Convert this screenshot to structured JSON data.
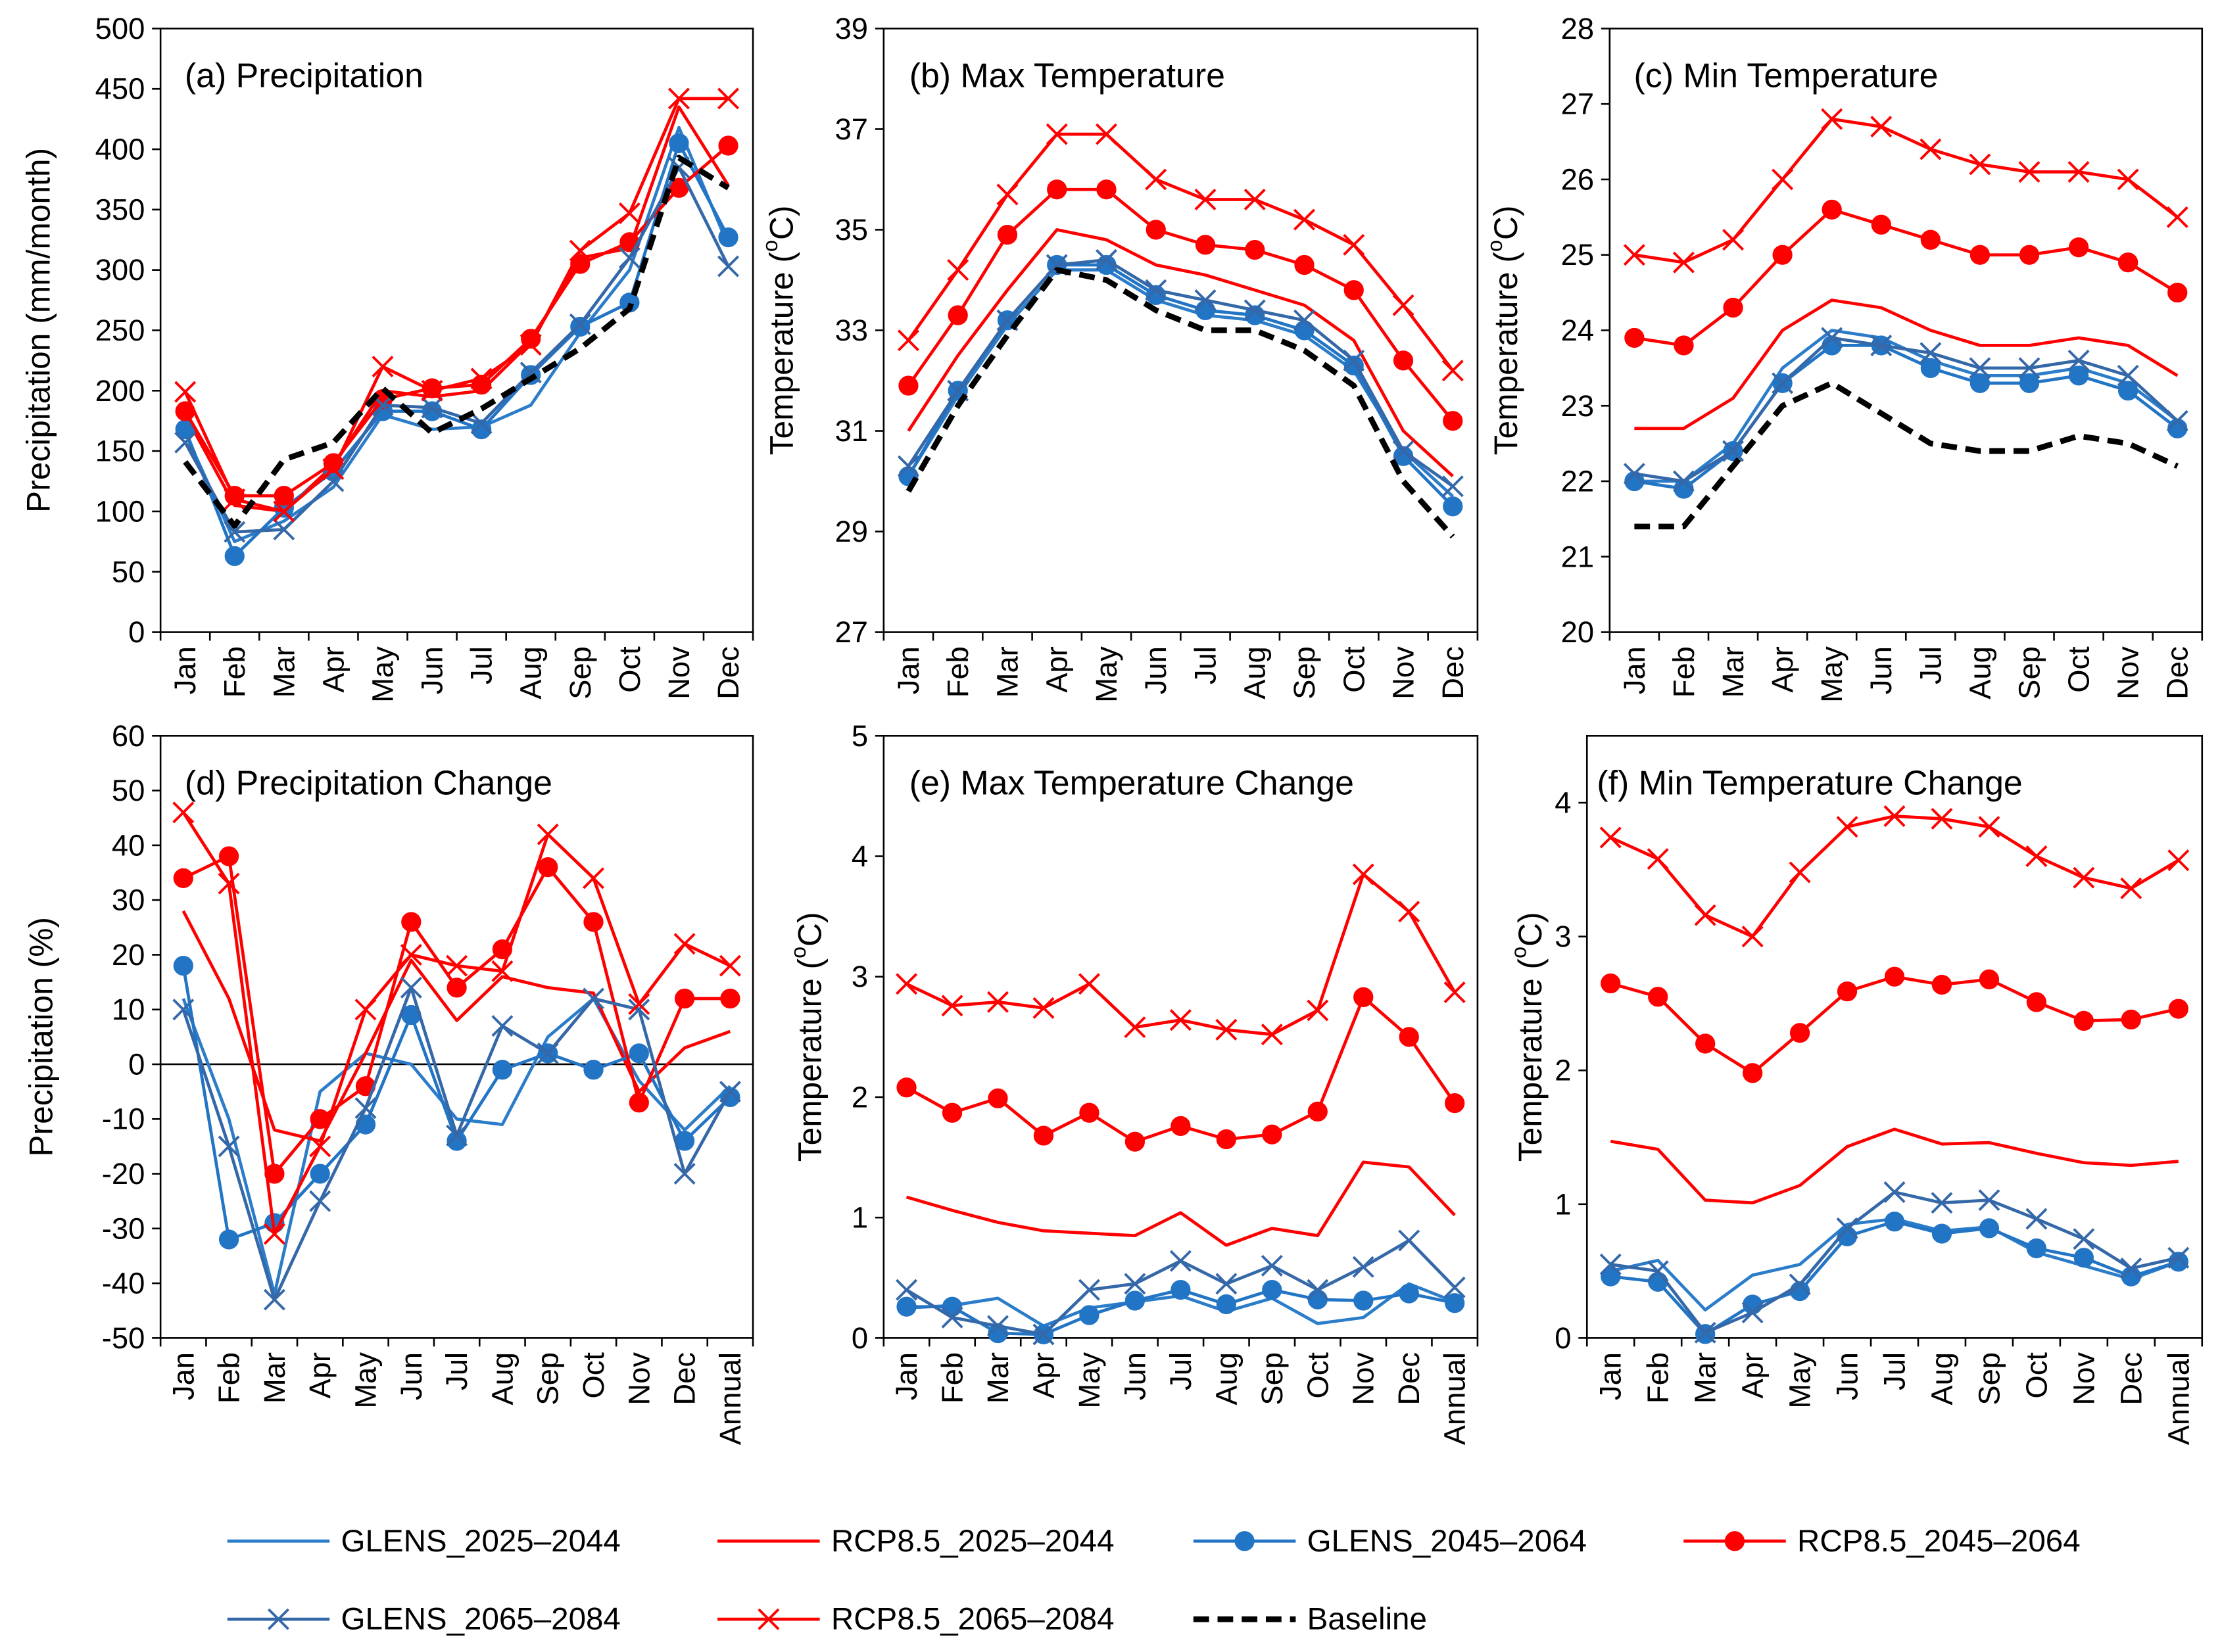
{
  "legend": {
    "items": [
      {
        "name": "GLENS_2025–2044",
        "color": "#2B7CC9",
        "marker": "none",
        "line": "solid"
      },
      {
        "name": "RCP8.5_2025–2044",
        "color": "#FF0000",
        "marker": "none",
        "line": "solid"
      },
      {
        "name": "GLENS_2045–2064",
        "color": "#2274C5",
        "marker": "circle",
        "line": "solid"
      },
      {
        "name": "RCP8.5_2045–2064",
        "color": "#FF0000",
        "marker": "circle",
        "line": "solid"
      },
      {
        "name": "GLENS_2065–2084",
        "color": "#3568A8",
        "marker": "x",
        "line": "solid"
      },
      {
        "name": "RCP8.5_2065–2084",
        "color": "#FF0000",
        "marker": "x",
        "line": "solid"
      },
      {
        "name": "Baseline",
        "color": "#000000",
        "marker": "none",
        "line": "dashed"
      }
    ]
  },
  "chart_data": [
    {
      "type": "line",
      "title": "(a) Precipitation",
      "ylabel": "Precipitation (mm/month)",
      "ylim": [
        0,
        500
      ],
      "yticks": [
        0,
        50,
        100,
        150,
        200,
        250,
        300,
        350,
        400,
        450,
        500
      ],
      "categories": [
        "Jan",
        "Feb",
        "Mar",
        "Apr",
        "May",
        "Jun",
        "Jul",
        "Aug",
        "Sep",
        "Oct",
        "Nov",
        "Dec"
      ],
      "series": [
        {
          "name": "GLENS_2025–2044",
          "values": [
            165,
            75,
            92,
            120,
            180,
            168,
            170,
            188,
            248,
            300,
            418,
            320
          ]
        },
        {
          "name": "RCP8.5_2025–2044",
          "values": [
            180,
            105,
            100,
            138,
            200,
            195,
            200,
            240,
            310,
            318,
            435,
            370
          ]
        },
        {
          "name": "GLENS_2045–2064",
          "values": [
            168,
            63,
            103,
            133,
            183,
            183,
            168,
            213,
            253,
            273,
            405,
            327
          ]
        },
        {
          "name": "RCP8.5_2045–2064",
          "values": [
            183,
            113,
            113,
            140,
            193,
            202,
            205,
            243,
            305,
            323,
            368,
            403
          ]
        },
        {
          "name": "GLENS_2065–2084",
          "values": [
            157,
            83,
            85,
            125,
            188,
            186,
            173,
            215,
            255,
            310,
            385,
            303
          ]
        },
        {
          "name": "RCP8.5_2065–2084",
          "values": [
            199,
            110,
            100,
            135,
            220,
            200,
            210,
            238,
            316,
            347,
            442,
            442
          ]
        },
        {
          "name": "Baseline",
          "values": [
            141,
            88,
            143,
            157,
            202,
            165,
            185,
            210,
            235,
            268,
            393,
            368
          ]
        }
      ]
    },
    {
      "type": "line",
      "title": "(b) Max Temperature",
      "ylabel": "Temperature (",
      "ylabel_sup": "o",
      "ylabel_end": "C)",
      "ylim": [
        27,
        39
      ],
      "yticks": [
        27,
        29,
        31,
        33,
        35,
        37,
        39
      ],
      "categories": [
        "Jan",
        "Feb",
        "Mar",
        "Apr",
        "May",
        "Jun",
        "Jul",
        "Aug",
        "Sep",
        "Oct",
        "Nov",
        "Dec"
      ],
      "series": [
        {
          "name": "GLENS_2025–2044",
          "values": [
            30.1,
            31.7,
            33.1,
            34.2,
            34.2,
            33.6,
            33.3,
            33.2,
            32.9,
            32.2,
            30.6,
            29.7
          ]
        },
        {
          "name": "RCP8.5_2025–2044",
          "values": [
            31.0,
            32.5,
            33.8,
            35.0,
            34.8,
            34.3,
            34.1,
            33.8,
            33.5,
            32.8,
            31.0,
            30.1
          ]
        },
        {
          "name": "GLENS_2045–2064",
          "values": [
            30.1,
            31.8,
            33.2,
            34.3,
            34.3,
            33.7,
            33.4,
            33.3,
            33.0,
            32.3,
            30.5,
            29.5
          ]
        },
        {
          "name": "RCP8.5_2045–2064",
          "values": [
            31.9,
            33.3,
            34.9,
            35.8,
            35.8,
            35.0,
            34.7,
            34.6,
            34.3,
            33.8,
            32.4,
            31.2
          ]
        },
        {
          "name": "GLENS_2065–2084",
          "values": [
            30.3,
            31.8,
            33.2,
            34.3,
            34.4,
            33.8,
            33.6,
            33.4,
            33.2,
            32.4,
            30.6,
            29.9
          ]
        },
        {
          "name": "RCP8.5_2065–2084",
          "values": [
            32.8,
            34.2,
            35.7,
            36.9,
            36.9,
            36.0,
            35.6,
            35.6,
            35.2,
            34.7,
            33.5,
            32.2
          ]
        },
        {
          "name": "Baseline",
          "values": [
            29.8,
            31.5,
            32.9,
            34.2,
            34.0,
            33.4,
            33.0,
            33.0,
            32.6,
            31.9,
            30.0,
            28.9
          ]
        }
      ]
    },
    {
      "type": "line",
      "title": "(c) Min Temperature",
      "ylabel": "Temperature (",
      "ylabel_sup": "o",
      "ylabel_end": "C)",
      "ylim": [
        20,
        28
      ],
      "yticks": [
        20,
        21,
        22,
        23,
        24,
        25,
        26,
        27,
        28
      ],
      "categories": [
        "Jan",
        "Feb",
        "Mar",
        "Apr",
        "May",
        "Jun",
        "Jul",
        "Aug",
        "Sep",
        "Oct",
        "Nov",
        "Dec"
      ],
      "series": [
        {
          "name": "GLENS_2025–2044",
          "values": [
            22.0,
            22.0,
            22.5,
            23.5,
            24.0,
            23.9,
            23.6,
            23.4,
            23.4,
            23.5,
            23.3,
            22.8
          ]
        },
        {
          "name": "RCP8.5_2025–2044",
          "values": [
            22.7,
            22.7,
            23.1,
            24.0,
            24.4,
            24.3,
            24.0,
            23.8,
            23.8,
            23.9,
            23.8,
            23.4
          ]
        },
        {
          "name": "GLENS_2045–2064",
          "values": [
            22.0,
            21.9,
            22.4,
            23.3,
            23.8,
            23.8,
            23.5,
            23.3,
            23.3,
            23.4,
            23.2,
            22.7
          ]
        },
        {
          "name": "RCP8.5_2045–2064",
          "values": [
            23.9,
            23.8,
            24.3,
            25.0,
            25.6,
            25.4,
            25.2,
            25.0,
            25.0,
            25.1,
            24.9,
            24.5
          ]
        },
        {
          "name": "GLENS_2065–2084",
          "values": [
            22.1,
            22.0,
            22.4,
            23.3,
            23.9,
            23.8,
            23.7,
            23.5,
            23.5,
            23.6,
            23.4,
            22.8
          ]
        },
        {
          "name": "RCP8.5_2065–2084",
          "values": [
            25.0,
            24.9,
            25.2,
            26.0,
            26.8,
            26.7,
            26.4,
            26.2,
            26.1,
            26.1,
            26.0,
            25.5
          ]
        },
        {
          "name": "Baseline",
          "values": [
            21.4,
            21.4,
            22.2,
            23.0,
            23.3,
            22.9,
            22.5,
            22.4,
            22.4,
            22.6,
            22.5,
            22.2
          ]
        }
      ]
    },
    {
      "type": "line",
      "title": "(d) Precipitation Change",
      "ylabel": "Precipitation (%)",
      "ylim": [
        -50,
        60
      ],
      "yticks": [
        -50,
        -40,
        -30,
        -20,
        -10,
        0,
        10,
        20,
        30,
        40,
        50,
        60
      ],
      "categories": [
        "Jan",
        "Feb",
        "Mar",
        "Apr",
        "May",
        "Jun",
        "Jul",
        "Aug",
        "Sep",
        "Oct",
        "Nov",
        "Dec",
        "Annual"
      ],
      "series": [
        {
          "name": "GLENS_2025–2044",
          "values": [
            12,
            -10,
            -42,
            -5,
            2,
            0,
            -10,
            -11,
            5,
            12,
            -3,
            -12,
            -4
          ]
        },
        {
          "name": "RCP8.5_2025–2044",
          "values": [
            28,
            12,
            -12,
            -14,
            2,
            19,
            8,
            16,
            14,
            13,
            -5,
            3,
            6
          ]
        },
        {
          "name": "GLENS_2045–2064",
          "values": [
            18,
            -32,
            -29,
            -20,
            -11,
            9,
            -14,
            -1,
            2,
            -1,
            2,
            -14,
            -6
          ]
        },
        {
          "name": "RCP8.5_2045–2064",
          "values": [
            34,
            38,
            -20,
            -10,
            -4,
            26,
            14,
            21,
            36,
            26,
            -7,
            12,
            12
          ]
        },
        {
          "name": "GLENS_2065–2084",
          "values": [
            10,
            -15,
            -43,
            -25,
            -8,
            14,
            -13,
            7,
            2,
            12,
            10,
            -20,
            -5
          ]
        },
        {
          "name": "RCP8.5_2065–2084",
          "values": [
            46,
            33,
            -31,
            -15,
            10,
            20,
            18,
            17,
            42,
            34,
            11,
            22,
            18
          ]
        }
      ]
    },
    {
      "type": "line",
      "title": "(e) Max Temperature Change",
      "ylabel": "Temperature (",
      "ylabel_sup": "o",
      "ylabel_end": "C)",
      "ylim": [
        0,
        5
      ],
      "yticks": [
        0,
        1,
        2,
        3,
        4,
        5
      ],
      "categories": [
        "Jan",
        "Feb",
        "Mar",
        "Apr",
        "May",
        "Jun",
        "Jul",
        "Aug",
        "Sep",
        "Oct",
        "Nov",
        "Dec",
        "Annual"
      ],
      "series": [
        {
          "name": "GLENS_2025–2044",
          "values": [
            0.25,
            0.27,
            0.33,
            0.1,
            0.25,
            0.3,
            0.35,
            0.22,
            0.33,
            0.12,
            0.17,
            0.45,
            0.3
          ]
        },
        {
          "name": "RCP8.5_2025–2044",
          "values": [
            1.17,
            1.06,
            0.96,
            0.89,
            0.87,
            0.85,
            1.04,
            0.77,
            0.91,
            0.85,
            1.46,
            1.42,
            1.02
          ]
        },
        {
          "name": "GLENS_2045–2064",
          "values": [
            0.26,
            0.26,
            0.04,
            0.03,
            0.19,
            0.31,
            0.4,
            0.28,
            0.4,
            0.32,
            0.31,
            0.37,
            0.29
          ]
        },
        {
          "name": "RCP8.5_2045–2064",
          "values": [
            2.08,
            1.87,
            1.99,
            1.68,
            1.87,
            1.63,
            1.76,
            1.65,
            1.69,
            1.88,
            2.83,
            2.5,
            1.95
          ]
        },
        {
          "name": "GLENS_2065–2084",
          "values": [
            0.4,
            0.17,
            0.1,
            0.03,
            0.4,
            0.45,
            0.64,
            0.45,
            0.6,
            0.4,
            0.59,
            0.81,
            0.42
          ]
        },
        {
          "name": "RCP8.5_2065–2084",
          "values": [
            2.94,
            2.76,
            2.79,
            2.74,
            2.94,
            2.58,
            2.64,
            2.56,
            2.52,
            2.72,
            3.85,
            3.54,
            2.87
          ]
        }
      ]
    },
    {
      "type": "line",
      "title": "(f) Min Temperature Change",
      "ylabel": "Temperature (",
      "ylabel_sup": "o",
      "ylabel_end": "C)",
      "ylim": [
        0,
        4.5
      ],
      "yticks": [
        0,
        1,
        2,
        3,
        4
      ],
      "categories": [
        "Jan",
        "Feb",
        "Mar",
        "Apr",
        "May",
        "Jun",
        "Jul",
        "Aug",
        "Sep",
        "Oct",
        "Nov",
        "Dec",
        "Annual"
      ],
      "series": [
        {
          "name": "GLENS_2025–2044",
          "values": [
            0.5,
            0.58,
            0.21,
            0.47,
            0.55,
            0.85,
            0.89,
            0.8,
            0.83,
            0.64,
            0.54,
            0.44,
            0.57
          ]
        },
        {
          "name": "RCP8.5_2025–2044",
          "values": [
            1.47,
            1.41,
            1.03,
            1.01,
            1.14,
            1.43,
            1.56,
            1.45,
            1.46,
            1.38,
            1.31,
            1.29,
            1.32
          ]
        },
        {
          "name": "GLENS_2045–2064",
          "values": [
            0.46,
            0.42,
            0.03,
            0.25,
            0.35,
            0.76,
            0.87,
            0.78,
            0.82,
            0.67,
            0.6,
            0.46,
            0.57
          ]
        },
        {
          "name": "RCP8.5_2045–2064",
          "values": [
            2.65,
            2.55,
            2.2,
            1.98,
            2.28,
            2.59,
            2.7,
            2.64,
            2.68,
            2.51,
            2.37,
            2.38,
            2.46
          ]
        },
        {
          "name": "GLENS_2065–2084",
          "values": [
            0.55,
            0.5,
            0.04,
            0.19,
            0.4,
            0.82,
            1.09,
            1.01,
            1.03,
            0.89,
            0.74,
            0.52,
            0.6
          ]
        },
        {
          "name": "RCP8.5_2065–2084",
          "values": [
            3.74,
            3.58,
            3.16,
            3.0,
            3.48,
            3.82,
            3.9,
            3.88,
            3.82,
            3.6,
            3.44,
            3.36,
            3.57
          ]
        }
      ]
    }
  ]
}
